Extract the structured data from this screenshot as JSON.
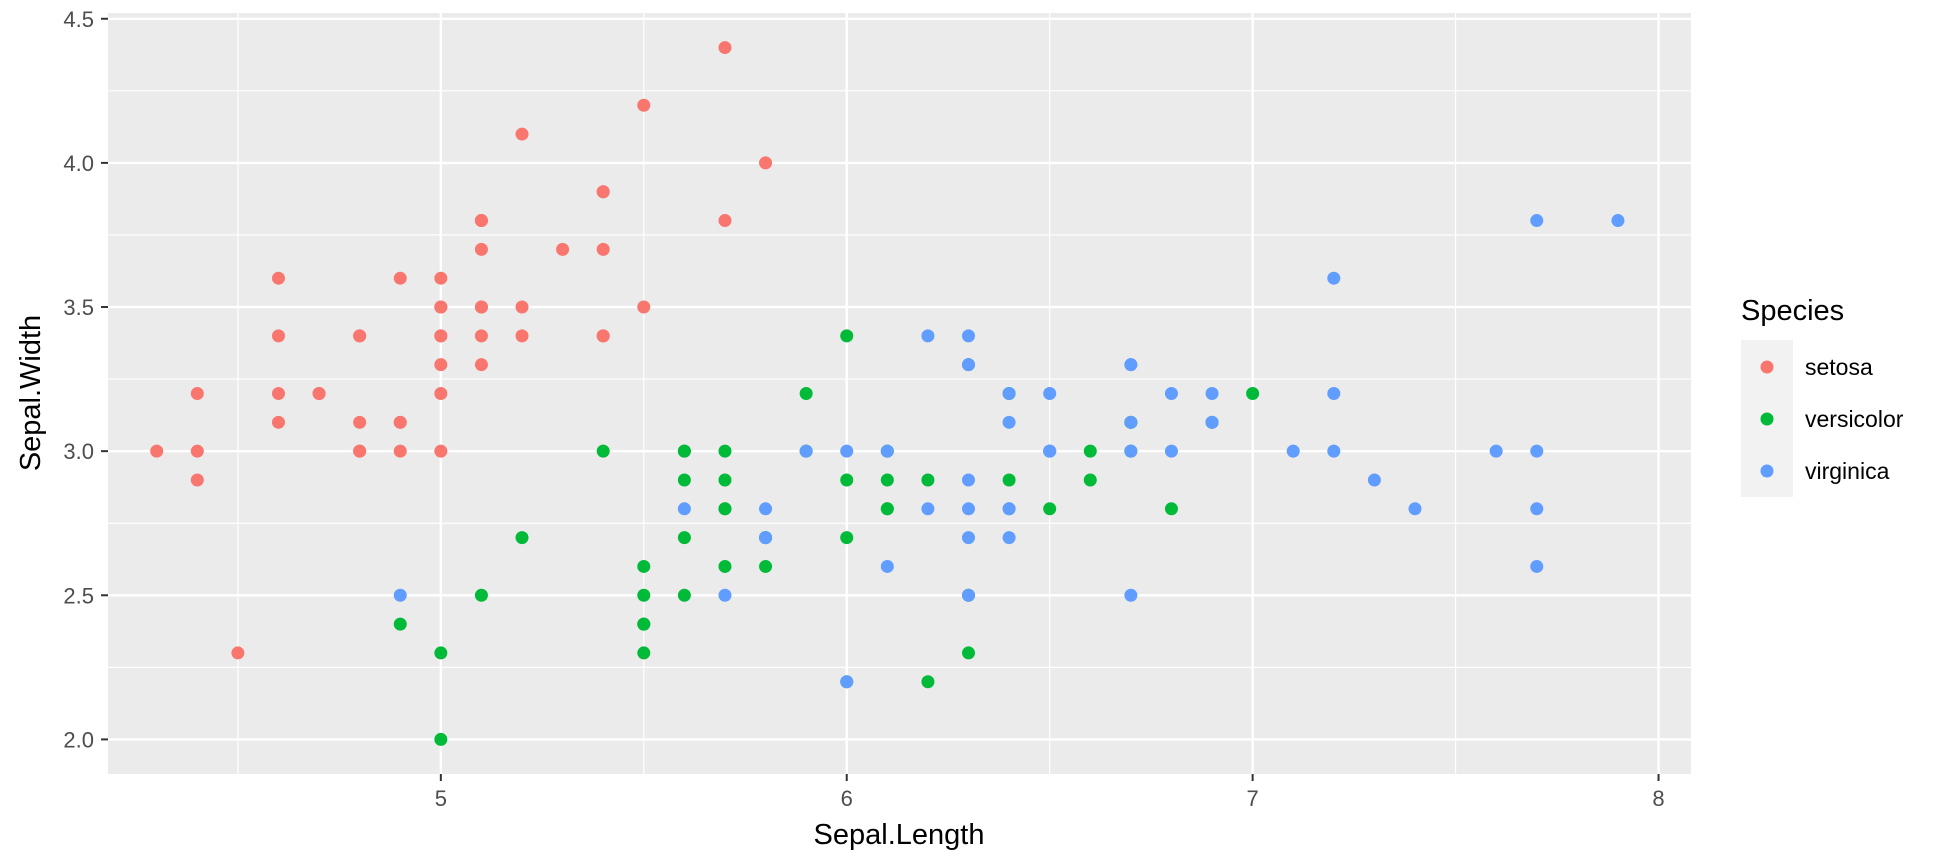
{
  "chart_data": {
    "type": "scatter",
    "title": "",
    "xlabel": "Sepal.Length",
    "ylabel": "Sepal.Width",
    "xlim": [
      4.18,
      8.08
    ],
    "ylim": [
      1.88,
      4.52
    ],
    "x_ticks": [
      5,
      6,
      7,
      8
    ],
    "x_tick_labels": [
      "5",
      "6",
      "7",
      "8"
    ],
    "y_ticks": [
      2.0,
      2.5,
      3.0,
      3.5,
      4.0,
      4.5
    ],
    "y_tick_labels": [
      "2.0",
      "2.5",
      "3.0",
      "3.5",
      "4.0",
      "4.5"
    ],
    "grid": true,
    "legend": {
      "title": "Species",
      "position": "right"
    },
    "series": [
      {
        "name": "setosa",
        "color": "#F8766D",
        "points": [
          [
            5.1,
            3.5
          ],
          [
            4.9,
            3.0
          ],
          [
            4.7,
            3.2
          ],
          [
            4.6,
            3.1
          ],
          [
            5.0,
            3.6
          ],
          [
            5.4,
            3.9
          ],
          [
            4.6,
            3.4
          ],
          [
            5.0,
            3.4
          ],
          [
            4.4,
            2.9
          ],
          [
            4.9,
            3.1
          ],
          [
            5.4,
            3.7
          ],
          [
            4.8,
            3.4
          ],
          [
            4.8,
            3.0
          ],
          [
            4.3,
            3.0
          ],
          [
            5.8,
            4.0
          ],
          [
            5.7,
            4.4
          ],
          [
            5.4,
            3.9
          ],
          [
            5.1,
            3.5
          ],
          [
            5.7,
            3.8
          ],
          [
            5.1,
            3.8
          ],
          [
            5.4,
            3.4
          ],
          [
            5.1,
            3.7
          ],
          [
            4.6,
            3.6
          ],
          [
            5.1,
            3.3
          ],
          [
            4.8,
            3.4
          ],
          [
            5.0,
            3.0
          ],
          [
            5.0,
            3.4
          ],
          [
            5.2,
            3.5
          ],
          [
            5.2,
            3.4
          ],
          [
            4.7,
            3.2
          ],
          [
            4.8,
            3.1
          ],
          [
            5.4,
            3.4
          ],
          [
            5.2,
            4.1
          ],
          [
            5.5,
            4.2
          ],
          [
            4.9,
            3.1
          ],
          [
            5.0,
            3.2
          ],
          [
            5.5,
            3.5
          ],
          [
            4.9,
            3.6
          ],
          [
            4.4,
            3.0
          ],
          [
            5.1,
            3.4
          ],
          [
            5.0,
            3.5
          ],
          [
            4.5,
            2.3
          ],
          [
            4.4,
            3.2
          ],
          [
            5.0,
            3.5
          ],
          [
            5.1,
            3.8
          ],
          [
            4.8,
            3.0
          ],
          [
            5.1,
            3.8
          ],
          [
            4.6,
            3.2
          ],
          [
            5.3,
            3.7
          ],
          [
            5.0,
            3.3
          ]
        ]
      },
      {
        "name": "versicolor",
        "color": "#00BA38",
        "points": [
          [
            7.0,
            3.2
          ],
          [
            6.4,
            3.2
          ],
          [
            6.9,
            3.1
          ],
          [
            5.5,
            2.3
          ],
          [
            6.5,
            2.8
          ],
          [
            5.7,
            2.8
          ],
          [
            6.3,
            3.3
          ],
          [
            4.9,
            2.4
          ],
          [
            6.6,
            2.9
          ],
          [
            5.2,
            2.7
          ],
          [
            5.0,
            2.0
          ],
          [
            5.9,
            3.0
          ],
          [
            6.0,
            2.2
          ],
          [
            6.1,
            2.9
          ],
          [
            5.6,
            2.9
          ],
          [
            6.7,
            3.1
          ],
          [
            5.6,
            3.0
          ],
          [
            5.8,
            2.7
          ],
          [
            6.2,
            2.2
          ],
          [
            5.6,
            2.5
          ],
          [
            5.9,
            3.2
          ],
          [
            6.1,
            2.8
          ],
          [
            6.3,
            2.5
          ],
          [
            6.1,
            2.8
          ],
          [
            6.4,
            2.9
          ],
          [
            6.6,
            3.0
          ],
          [
            6.8,
            2.8
          ],
          [
            6.7,
            3.0
          ],
          [
            6.0,
            2.9
          ],
          [
            5.7,
            2.6
          ],
          [
            5.5,
            2.4
          ],
          [
            5.5,
            2.4
          ],
          [
            5.8,
            2.7
          ],
          [
            6.0,
            2.7
          ],
          [
            5.4,
            3.0
          ],
          [
            6.0,
            3.4
          ],
          [
            6.7,
            3.1
          ],
          [
            6.3,
            2.3
          ],
          [
            5.6,
            3.0
          ],
          [
            5.5,
            2.5
          ],
          [
            5.5,
            2.6
          ],
          [
            6.1,
            3.0
          ],
          [
            5.8,
            2.6
          ],
          [
            5.0,
            2.3
          ],
          [
            5.6,
            2.7
          ],
          [
            5.7,
            3.0
          ],
          [
            5.7,
            2.9
          ],
          [
            6.2,
            2.9
          ],
          [
            5.1,
            2.5
          ],
          [
            5.7,
            2.8
          ]
        ]
      },
      {
        "name": "virginica",
        "color": "#619CFF",
        "points": [
          [
            6.3,
            3.3
          ],
          [
            5.8,
            2.7
          ],
          [
            7.1,
            3.0
          ],
          [
            6.3,
            2.9
          ],
          [
            6.5,
            3.0
          ],
          [
            7.6,
            3.0
          ],
          [
            4.9,
            2.5
          ],
          [
            7.3,
            2.9
          ],
          [
            6.7,
            2.5
          ],
          [
            7.2,
            3.6
          ],
          [
            6.5,
            3.2
          ],
          [
            6.4,
            2.7
          ],
          [
            6.8,
            3.0
          ],
          [
            5.7,
            2.5
          ],
          [
            5.8,
            2.8
          ],
          [
            6.4,
            3.2
          ],
          [
            6.5,
            3.0
          ],
          [
            7.7,
            3.8
          ],
          [
            7.7,
            2.6
          ],
          [
            6.0,
            2.2
          ],
          [
            6.9,
            3.2
          ],
          [
            5.6,
            2.8
          ],
          [
            7.7,
            2.8
          ],
          [
            6.3,
            2.7
          ],
          [
            6.7,
            3.3
          ],
          [
            7.2,
            3.2
          ],
          [
            6.2,
            2.8
          ],
          [
            6.1,
            3.0
          ],
          [
            6.4,
            2.8
          ],
          [
            7.2,
            3.0
          ],
          [
            7.4,
            2.8
          ],
          [
            7.9,
            3.8
          ],
          [
            6.4,
            2.8
          ],
          [
            6.3,
            2.8
          ],
          [
            6.1,
            2.6
          ],
          [
            7.7,
            3.0
          ],
          [
            6.3,
            3.4
          ],
          [
            6.4,
            3.1
          ],
          [
            6.0,
            3.0
          ],
          [
            6.9,
            3.1
          ],
          [
            6.7,
            3.1
          ],
          [
            6.9,
            3.1
          ],
          [
            5.8,
            2.7
          ],
          [
            6.8,
            3.2
          ],
          [
            6.7,
            3.3
          ],
          [
            6.7,
            3.0
          ],
          [
            6.3,
            2.5
          ],
          [
            6.5,
            3.0
          ],
          [
            6.2,
            3.4
          ],
          [
            5.9,
            3.0
          ]
        ]
      }
    ]
  }
}
